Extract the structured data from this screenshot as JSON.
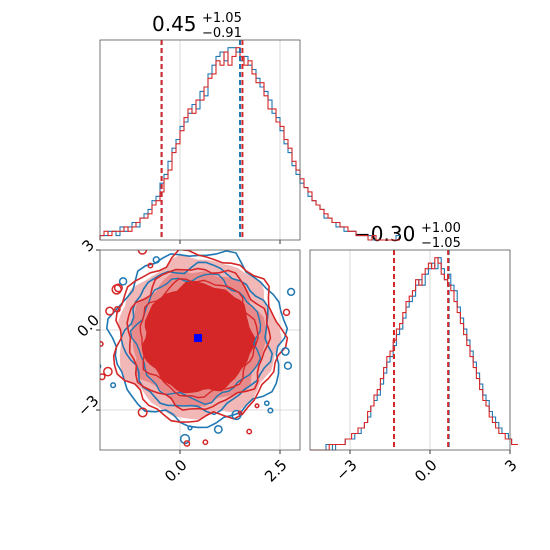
{
  "chart_data": [
    {
      "type": "histogram",
      "panel": "marginal-x",
      "title": {
        "median": "0.45",
        "plus": "+1.05",
        "minus": "−0.91"
      },
      "xlim": [
        -2.0,
        3.0
      ],
      "grid": true,
      "x_ticks": [
        0.0,
        2.5
      ],
      "bin_edges_start": -2.0,
      "bin_width": 0.1,
      "series": [
        {
          "name": "",
          "color": "#1f77b4",
          "counts": [
            1,
            1,
            2,
            2,
            1,
            3,
            2,
            3,
            4,
            3,
            5,
            6,
            7,
            9,
            10,
            13,
            15,
            18,
            21,
            23,
            26,
            27,
            29,
            31,
            30,
            34,
            33,
            38,
            40,
            42,
            43,
            41,
            44,
            44,
            43,
            41,
            42,
            40,
            39,
            37,
            35,
            34,
            32,
            29,
            28,
            25,
            22,
            20,
            17,
            15,
            13,
            12,
            10,
            9,
            8,
            7,
            5,
            5,
            4,
            3,
            3,
            2,
            2,
            2,
            1,
            1,
            1,
            1,
            0,
            0,
            0,
            0,
            0,
            0,
            1
          ]
        },
        {
          "name": "",
          "color": "#d62728",
          "counts": [
            1,
            2,
            1,
            2,
            2,
            2,
            3,
            2,
            3,
            4,
            5,
            5,
            6,
            8,
            9,
            11,
            14,
            16,
            20,
            22,
            25,
            28,
            30,
            29,
            32,
            32,
            35,
            37,
            38,
            41,
            40,
            43,
            40,
            42,
            44,
            42,
            40,
            41,
            38,
            36,
            36,
            33,
            30,
            30,
            27,
            26,
            23,
            21,
            18,
            16,
            14,
            12,
            11,
            9,
            8,
            7,
            6,
            5,
            4,
            4,
            3,
            3,
            2,
            2,
            1,
            1,
            1,
            0,
            1,
            0,
            0,
            0,
            0,
            0,
            0
          ]
        }
      ],
      "quantiles": {
        "blue": [
          -0.46,
          0.45,
          1.5
        ],
        "red": [
          -0.46,
          0.45,
          1.56
        ]
      }
    },
    {
      "type": "contour",
      "panel": "joint",
      "xlim": [
        -2.0,
        3.0
      ],
      "ylim": [
        -4.5,
        3.0
      ],
      "grid": true,
      "x_ticks": [
        0.0,
        2.5
      ],
      "y_ticks": [
        -3,
        0,
        3
      ],
      "center": [
        0.45,
        -0.3
      ],
      "marker": {
        "x": 0.45,
        "y": -0.3,
        "color": "#0000ff"
      },
      "series": [
        {
          "name": "",
          "color": "#1f77b4"
        },
        {
          "name": "",
          "color": "#d62728"
        }
      ]
    },
    {
      "type": "histogram",
      "panel": "marginal-y",
      "title": {
        "median": "−0.30",
        "plus": "+1.00",
        "minus": "−1.05"
      },
      "xlim": [
        -4.5,
        3.0
      ],
      "grid": true,
      "x_ticks": [
        -3,
        0,
        3
      ],
      "bin_edges_start": -4.5,
      "bin_width": 0.12,
      "series": [
        {
          "name": "",
          "color": "#1f77b4",
          "counts": [
            0,
            0,
            0,
            0,
            0,
            1,
            1,
            0,
            1,
            1,
            1,
            2,
            2,
            2,
            3,
            3,
            4,
            5,
            6,
            8,
            9,
            10,
            12,
            14,
            16,
            17,
            19,
            21,
            22,
            24,
            26,
            27,
            28,
            30,
            31,
            30,
            32,
            33,
            34,
            33,
            35,
            33,
            31,
            32,
            30,
            29,
            26,
            24,
            22,
            20,
            18,
            16,
            14,
            12,
            10,
            9,
            7,
            6,
            5,
            4,
            3,
            3,
            2,
            1,
            1
          ]
        },
        {
          "name": "",
          "color": "#d62728",
          "counts": [
            0,
            0,
            0,
            0,
            0,
            0,
            1,
            1,
            1,
            1,
            1,
            2,
            2,
            3,
            3,
            4,
            4,
            5,
            7,
            8,
            10,
            11,
            13,
            15,
            17,
            18,
            20,
            22,
            23,
            25,
            27,
            28,
            29,
            31,
            30,
            32,
            33,
            34,
            33,
            35,
            34,
            32,
            31,
            30,
            29,
            27,
            25,
            23,
            21,
            19,
            17,
            15,
            13,
            11,
            9,
            8,
            6,
            5,
            4,
            3,
            3,
            2,
            2,
            1,
            1
          ]
        }
      ],
      "quantiles": {
        "blue": [
          -1.35,
          -0.3,
          0.7
        ],
        "red": [
          -1.35,
          -0.3,
          0.68
        ]
      }
    }
  ]
}
